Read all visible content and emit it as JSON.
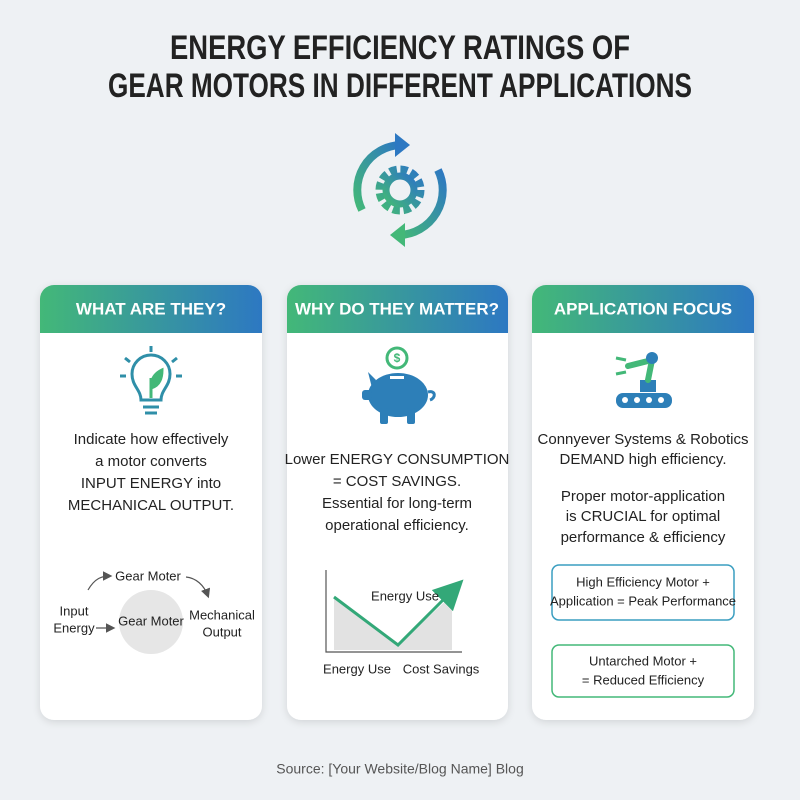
{
  "title": [
    "ENERGY EFFICIENCY RATINGS OF",
    "GEAR MOTORS IN DIFFERENT APPLICATIONS"
  ],
  "cards": [
    {
      "header": "WHAT ARE THEY?",
      "text": [
        "Indicate how effectively",
        "a motor converts",
        "INPUT ENERGY into",
        "MECHANICAL OUTPUT."
      ],
      "diagram": {
        "top": "Gear Moter",
        "input": [
          "Input",
          "Energy"
        ],
        "center": "Gear Moter",
        "output": [
          "Mechanical",
          "Output"
        ]
      }
    },
    {
      "header": "WHY DO THEY MATTER?",
      "text": [
        "Lower ENERGY CONSUMPTION",
        "= COST SAVINGS.",
        "Essential for long-term",
        "operational efficiency."
      ],
      "chart": {
        "peak_label": "Energy Use",
        "x_left": "Energy Use",
        "x_right": "Cost Savings"
      }
    },
    {
      "header": "APPLICATION FOCUS",
      "text": [
        "Connyever Systems & Robotics",
        "DEMAND high efficiency."
      ],
      "text2": [
        "Proper motor-application",
        "is CRUCIAL for optimal",
        "performance & efficiency"
      ],
      "boxes": [
        [
          "High Efficiency Motor +",
          "Application = Peak Performance"
        ],
        [
          "Untarched Motor +",
          "= Reduced Efficiency"
        ]
      ]
    }
  ],
  "footer": "Source: [Your Website/Blog Name] Blog"
}
